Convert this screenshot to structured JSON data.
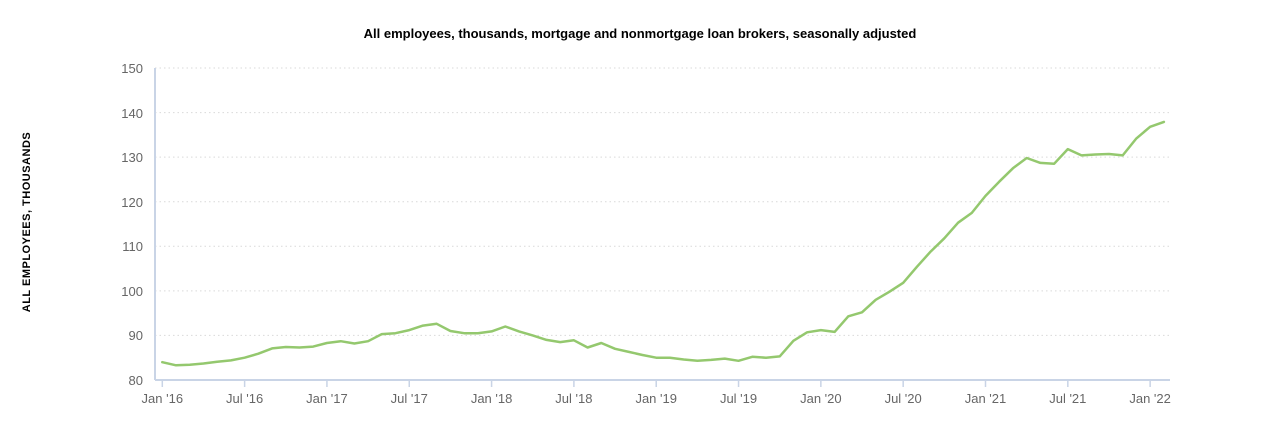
{
  "chart_data": {
    "type": "line",
    "title": "All employees, thousands, mortgage and nonmortgage loan brokers, seasonally adjusted",
    "ylabel": "ALL EMPLOYEES, THOUSANDS",
    "xlabel": "",
    "frequency": "monthly",
    "seasonally_adjusted": true,
    "x_range": [
      "Jan 2016",
      "Feb 2022"
    ],
    "ylim": [
      80,
      150
    ],
    "grid": "horizontal-dotted",
    "legend": "none",
    "y_tick_labels": [
      "80",
      "90",
      "100",
      "110",
      "120",
      "130",
      "140",
      "150"
    ],
    "x_tick_labels": [
      "Jan '16",
      "Jul '16",
      "Jan '17",
      "Jul '17",
      "Jan '18",
      "Jul '18",
      "Jan '19",
      "Jul '19",
      "Jan '20",
      "Jul '20",
      "Jan '21",
      "Jul '21",
      "Jan '22"
    ],
    "months": [
      "2016-01",
      "2016-02",
      "2016-03",
      "2016-04",
      "2016-05",
      "2016-06",
      "2016-07",
      "2016-08",
      "2016-09",
      "2016-10",
      "2016-11",
      "2016-12",
      "2017-01",
      "2017-02",
      "2017-03",
      "2017-04",
      "2017-05",
      "2017-06",
      "2017-07",
      "2017-08",
      "2017-09",
      "2017-10",
      "2017-11",
      "2017-12",
      "2018-01",
      "2018-02",
      "2018-03",
      "2018-04",
      "2018-05",
      "2018-06",
      "2018-07",
      "2018-08",
      "2018-09",
      "2018-10",
      "2018-11",
      "2018-12",
      "2019-01",
      "2019-02",
      "2019-03",
      "2019-04",
      "2019-05",
      "2019-06",
      "2019-07",
      "2019-08",
      "2019-09",
      "2019-10",
      "2019-11",
      "2019-12",
      "2020-01",
      "2020-02",
      "2020-03",
      "2020-04",
      "2020-05",
      "2020-06",
      "2020-07",
      "2020-08",
      "2020-09",
      "2020-10",
      "2020-11",
      "2020-12",
      "2021-01",
      "2021-02",
      "2021-03",
      "2021-04",
      "2021-05",
      "2021-06",
      "2021-07",
      "2021-08",
      "2021-09",
      "2021-10",
      "2021-11",
      "2021-12",
      "2022-01",
      "2022-02"
    ],
    "values": [
      84.0,
      83.3,
      83.4,
      83.7,
      84.1,
      84.4,
      85.0,
      85.9,
      87.1,
      87.4,
      87.3,
      87.5,
      88.3,
      88.7,
      88.2,
      88.7,
      90.3,
      90.5,
      91.2,
      92.2,
      92.6,
      91.0,
      90.5,
      90.5,
      90.9,
      92.0,
      90.9,
      90.0,
      89.0,
      88.5,
      88.9,
      87.3,
      88.3,
      87.0,
      86.3,
      85.6,
      85.0,
      85.0,
      84.6,
      84.3,
      84.5,
      84.8,
      84.3,
      85.2,
      85.0,
      85.3,
      88.8,
      90.7,
      91.2,
      90.8,
      94.3,
      95.2,
      98.0,
      99.8,
      101.8,
      105.4,
      108.8,
      111.8,
      115.3,
      117.5,
      121.3,
      124.5,
      127.5,
      129.8,
      128.7,
      128.5,
      131.8,
      130.4,
      130.6,
      130.7,
      130.4,
      134.2,
      136.8,
      137.9
    ],
    "line_color": "#94c86e",
    "axis_line_color": "#c9d4e6",
    "gridline_color": "#d9d9d9",
    "tick_label_color": "#666666",
    "title_color": "#000000"
  }
}
